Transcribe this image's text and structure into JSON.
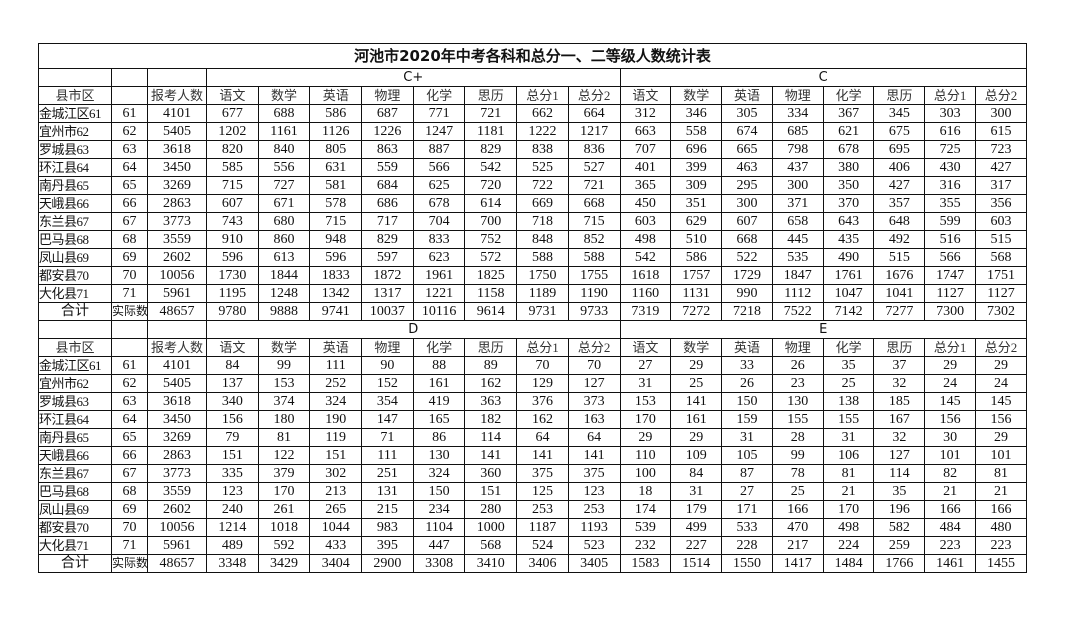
{
  "title": "河池市2020年中考各科和总分一、二等级人数统计表",
  "headers": {
    "county": "县市区",
    "code": "",
    "applicants": "报考人数",
    "subjects": [
      "语文",
      "数学",
      "英语",
      "物理",
      "化学",
      "思历",
      "总分1",
      "总分2"
    ]
  },
  "sections": [
    {
      "grades": [
        "C+",
        "C"
      ],
      "rows": [
        {
          "county": "金城江区61",
          "code": "61",
          "applicants": "4101",
          "values": [
            "677",
            "688",
            "586",
            "687",
            "771",
            "721",
            "662",
            "664",
            "312",
            "346",
            "305",
            "334",
            "367",
            "345",
            "303",
            "300"
          ]
        },
        {
          "county": "宜州市62",
          "code": "62",
          "applicants": "5405",
          "values": [
            "1202",
            "1161",
            "1126",
            "1226",
            "1247",
            "1181",
            "1222",
            "1217",
            "663",
            "558",
            "674",
            "685",
            "621",
            "675",
            "616",
            "615"
          ]
        },
        {
          "county": "罗城县63",
          "code": "63",
          "applicants": "3618",
          "values": [
            "820",
            "840",
            "805",
            "863",
            "887",
            "829",
            "838",
            "836",
            "707",
            "696",
            "665",
            "798",
            "678",
            "695",
            "725",
            "723"
          ]
        },
        {
          "county": "环江县64",
          "code": "64",
          "applicants": "3450",
          "values": [
            "585",
            "556",
            "631",
            "559",
            "566",
            "542",
            "525",
            "527",
            "401",
            "399",
            "463",
            "437",
            "380",
            "406",
            "430",
            "427"
          ]
        },
        {
          "county": "南丹县65",
          "code": "65",
          "applicants": "3269",
          "values": [
            "715",
            "727",
            "581",
            "684",
            "625",
            "720",
            "722",
            "721",
            "365",
            "309",
            "295",
            "300",
            "350",
            "427",
            "316",
            "317"
          ]
        },
        {
          "county": "天峨县66",
          "code": "66",
          "applicants": "2863",
          "values": [
            "607",
            "671",
            "578",
            "686",
            "678",
            "614",
            "669",
            "668",
            "450",
            "351",
            "300",
            "371",
            "370",
            "357",
            "355",
            "356"
          ]
        },
        {
          "county": "东兰县67",
          "code": "67",
          "applicants": "3773",
          "values": [
            "743",
            "680",
            "715",
            "717",
            "704",
            "700",
            "718",
            "715",
            "603",
            "629",
            "607",
            "658",
            "643",
            "648",
            "599",
            "603"
          ]
        },
        {
          "county": "巴马县68",
          "code": "68",
          "applicants": "3559",
          "values": [
            "910",
            "860",
            "948",
            "829",
            "833",
            "752",
            "848",
            "852",
            "498",
            "510",
            "668",
            "445",
            "435",
            "492",
            "516",
            "515"
          ]
        },
        {
          "county": "凤山县69",
          "code": "69",
          "applicants": "2602",
          "values": [
            "596",
            "613",
            "596",
            "597",
            "623",
            "572",
            "588",
            "588",
            "542",
            "586",
            "522",
            "535",
            "490",
            "515",
            "566",
            "568"
          ]
        },
        {
          "county": "都安县70",
          "code": "70",
          "applicants": "10056",
          "values": [
            "1730",
            "1844",
            "1833",
            "1872",
            "1961",
            "1825",
            "1750",
            "1755",
            "1618",
            "1757",
            "1729",
            "1847",
            "1761",
            "1676",
            "1747",
            "1751"
          ]
        },
        {
          "county": "大化县71",
          "code": "71",
          "applicants": "5961",
          "values": [
            "1195",
            "1248",
            "1342",
            "1317",
            "1221",
            "1158",
            "1189",
            "1190",
            "1160",
            "1131",
            "990",
            "1112",
            "1047",
            "1041",
            "1127",
            "1127"
          ]
        },
        {
          "county": "合计",
          "code": "实际数",
          "applicants": "48657",
          "values": [
            "9780",
            "9888",
            "9741",
            "10037",
            "10116",
            "9614",
            "9731",
            "9733",
            "7319",
            "7272",
            "7218",
            "7522",
            "7142",
            "7277",
            "7300",
            "7302"
          ]
        }
      ]
    },
    {
      "grades": [
        "D",
        "E"
      ],
      "rows": [
        {
          "county": "金城江区61",
          "code": "61",
          "applicants": "4101",
          "values": [
            "84",
            "99",
            "111",
            "90",
            "88",
            "89",
            "70",
            "70",
            "27",
            "29",
            "33",
            "26",
            "35",
            "37",
            "29",
            "29"
          ]
        },
        {
          "county": "宜州市62",
          "code": "62",
          "applicants": "5405",
          "values": [
            "137",
            "153",
            "252",
            "152",
            "161",
            "162",
            "129",
            "127",
            "31",
            "25",
            "26",
            "23",
            "25",
            "32",
            "24",
            "24"
          ]
        },
        {
          "county": "罗城县63",
          "code": "63",
          "applicants": "3618",
          "values": [
            "340",
            "374",
            "324",
            "354",
            "419",
            "363",
            "376",
            "373",
            "153",
            "141",
            "150",
            "130",
            "138",
            "185",
            "145",
            "145"
          ]
        },
        {
          "county": "环江县64",
          "code": "64",
          "applicants": "3450",
          "values": [
            "156",
            "180",
            "190",
            "147",
            "165",
            "182",
            "162",
            "163",
            "170",
            "161",
            "159",
            "155",
            "155",
            "167",
            "156",
            "156"
          ]
        },
        {
          "county": "南丹县65",
          "code": "65",
          "applicants": "3269",
          "values": [
            "79",
            "81",
            "119",
            "71",
            "86",
            "114",
            "64",
            "64",
            "29",
            "29",
            "31",
            "28",
            "31",
            "32",
            "30",
            "29"
          ]
        },
        {
          "county": "天峨县66",
          "code": "66",
          "applicants": "2863",
          "values": [
            "151",
            "122",
            "151",
            "111",
            "130",
            "141",
            "141",
            "141",
            "110",
            "109",
            "105",
            "99",
            "106",
            "127",
            "101",
            "101"
          ]
        },
        {
          "county": "东兰县67",
          "code": "67",
          "applicants": "3773",
          "values": [
            "335",
            "379",
            "302",
            "251",
            "324",
            "360",
            "375",
            "375",
            "100",
            "84",
            "87",
            "78",
            "81",
            "114",
            "82",
            "81"
          ]
        },
        {
          "county": "巴马县68",
          "code": "68",
          "applicants": "3559",
          "values": [
            "123",
            "170",
            "213",
            "131",
            "150",
            "151",
            "125",
            "123",
            "18",
            "31",
            "27",
            "25",
            "21",
            "35",
            "21",
            "21"
          ]
        },
        {
          "county": "凤山县69",
          "code": "69",
          "applicants": "2602",
          "values": [
            "240",
            "261",
            "265",
            "215",
            "234",
            "280",
            "253",
            "253",
            "174",
            "179",
            "171",
            "166",
            "170",
            "196",
            "166",
            "166"
          ]
        },
        {
          "county": "都安县70",
          "code": "70",
          "applicants": "10056",
          "values": [
            "1214",
            "1018",
            "1044",
            "983",
            "1104",
            "1000",
            "1187",
            "1193",
            "539",
            "499",
            "533",
            "470",
            "498",
            "582",
            "484",
            "480"
          ]
        },
        {
          "county": "大化县71",
          "code": "71",
          "applicants": "5961",
          "values": [
            "489",
            "592",
            "433",
            "395",
            "447",
            "568",
            "524",
            "523",
            "232",
            "227",
            "228",
            "217",
            "224",
            "259",
            "223",
            "223"
          ]
        },
        {
          "county": "合计",
          "code": "实际数",
          "applicants": "48657",
          "values": [
            "3348",
            "3429",
            "3404",
            "2900",
            "3308",
            "3410",
            "3406",
            "3405",
            "1583",
            "1514",
            "1550",
            "1417",
            "1484",
            "1766",
            "1461",
            "1455"
          ]
        }
      ]
    }
  ]
}
